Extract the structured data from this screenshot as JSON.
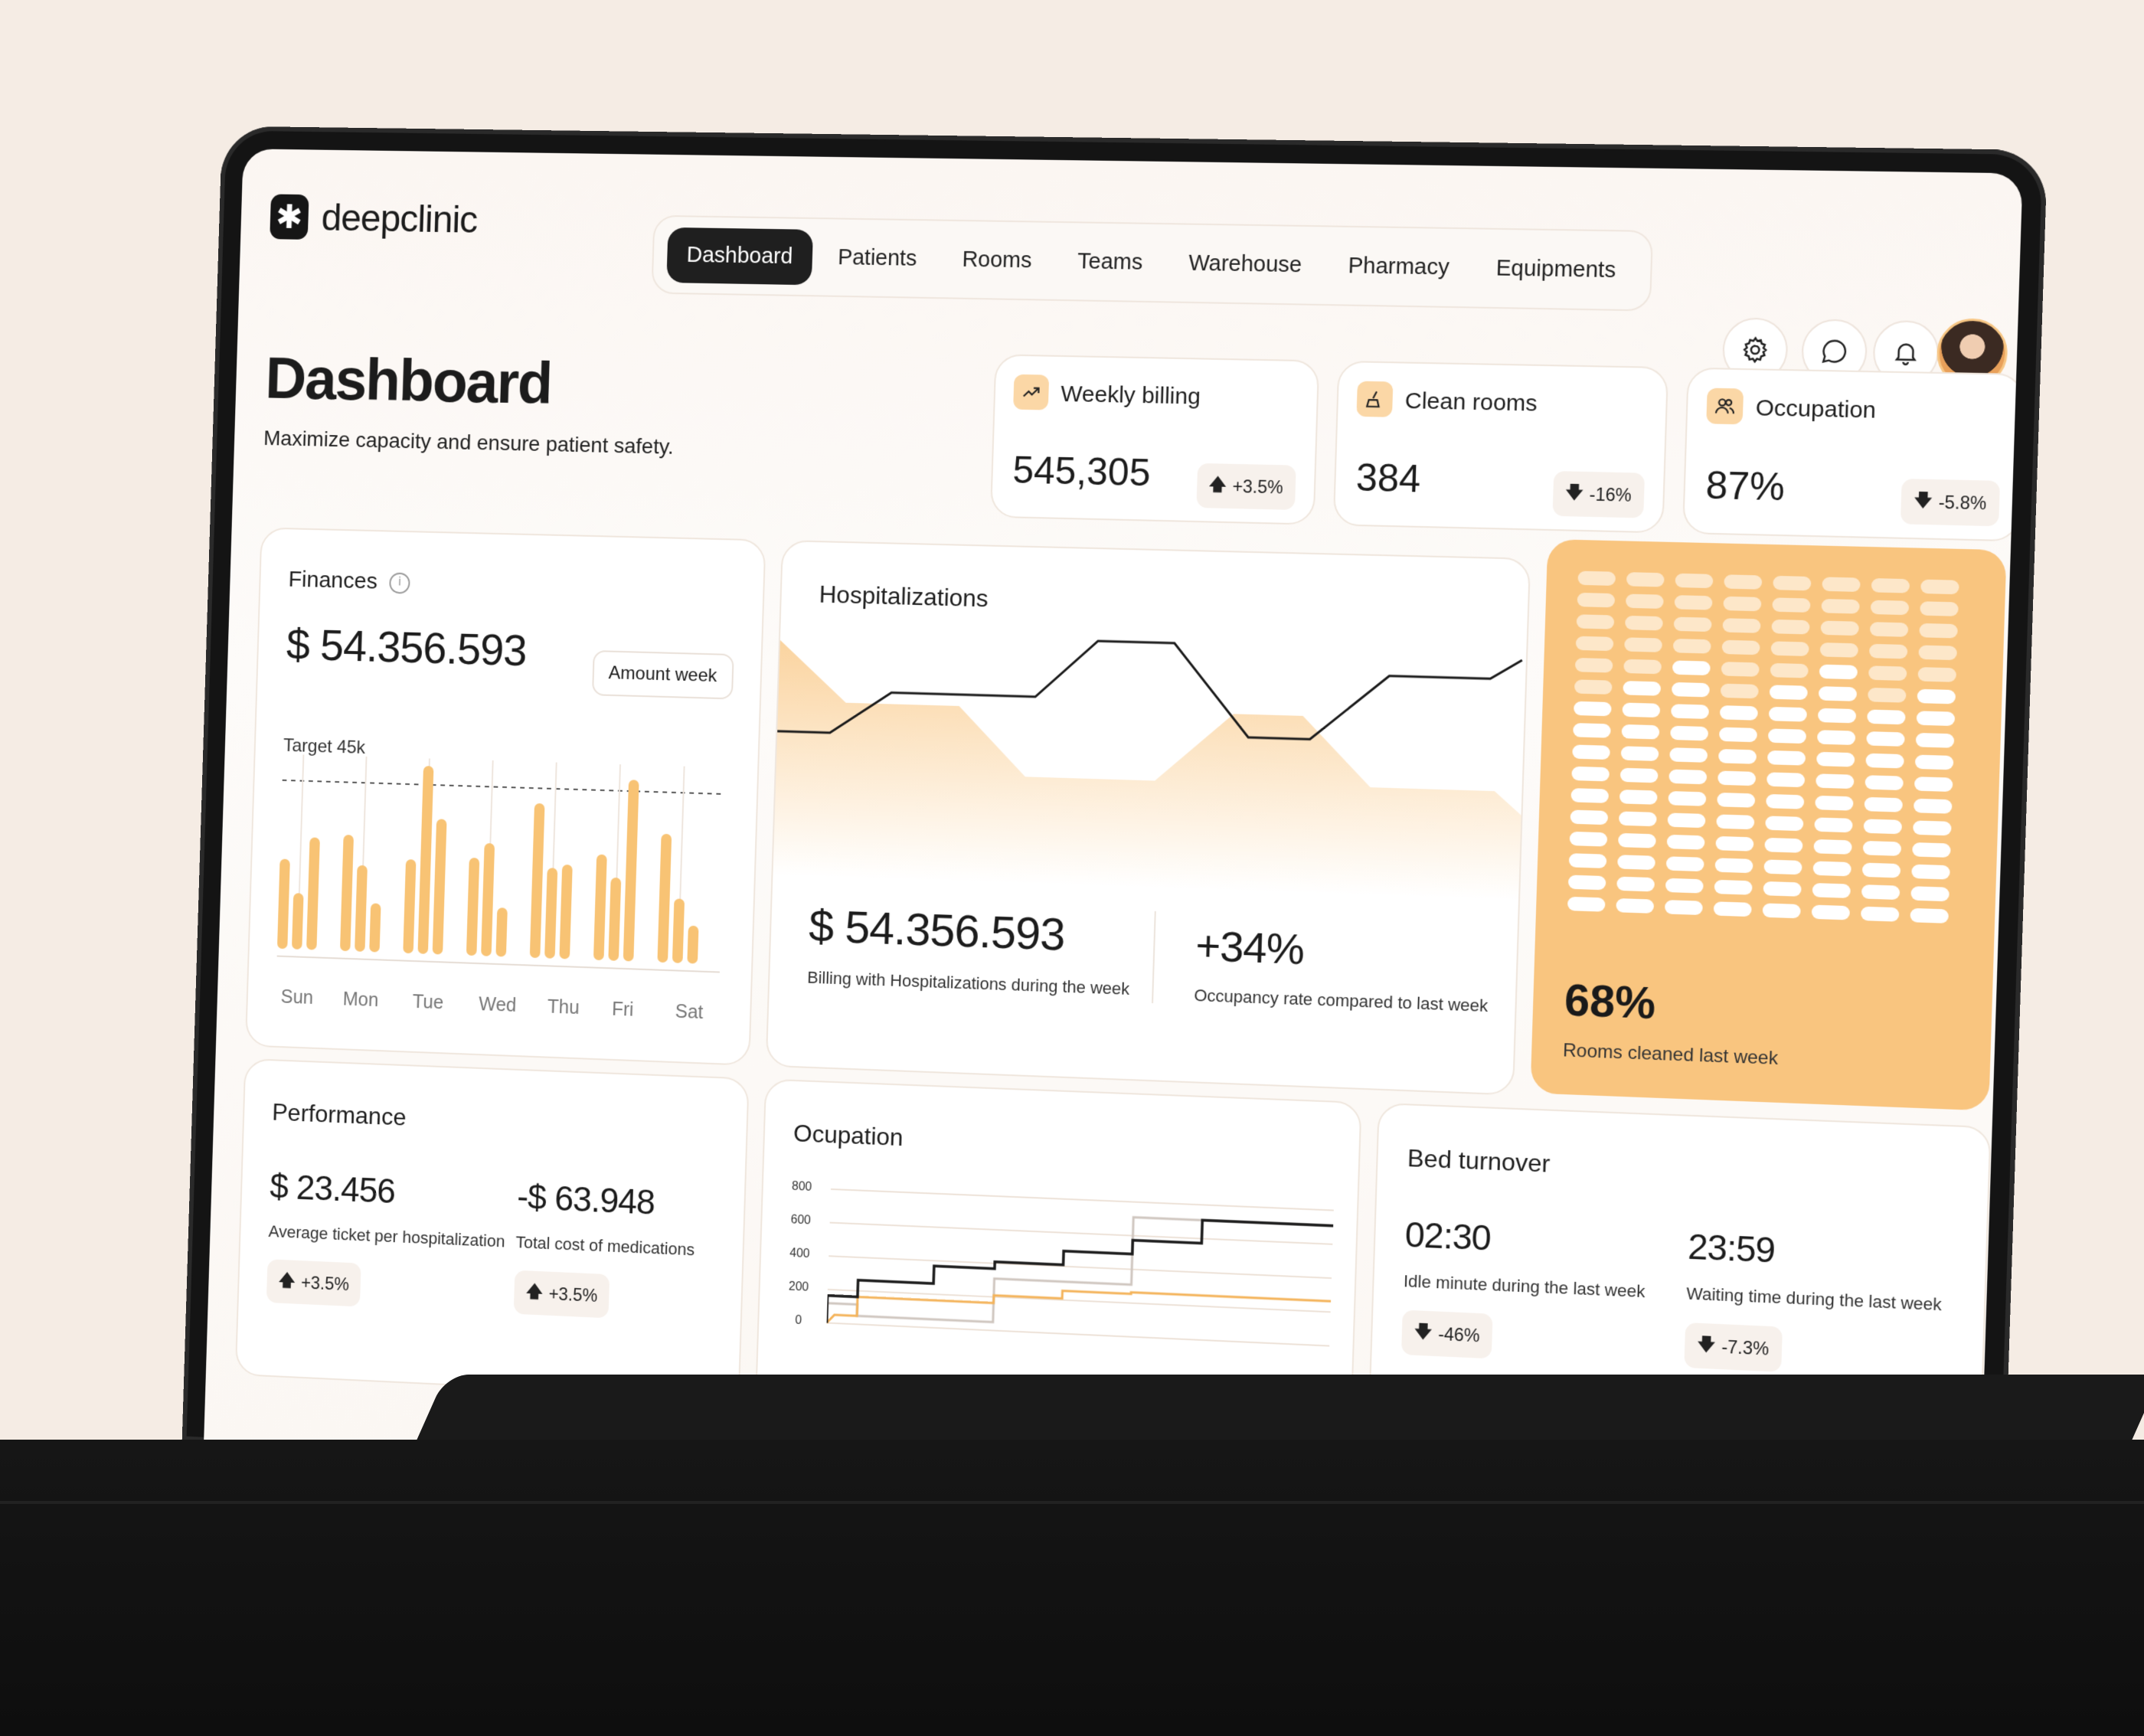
{
  "app": {
    "logo_text": "deepclinic"
  },
  "nav": {
    "items": [
      "Dashboard",
      "Patients",
      "Rooms",
      "Teams",
      "Warehouse",
      "Pharmacy",
      "Equipments"
    ],
    "active": "Dashboard"
  },
  "header_icons": [
    "gear-icon",
    "chat-icon",
    "bell-icon"
  ],
  "page": {
    "title": "Dashboard",
    "subtitle": "Maximize capacity and ensure patient safety."
  },
  "stats": [
    {
      "title": "Weekly billing",
      "value": "545,305",
      "delta": "+3.5%",
      "direction": "up",
      "icon": "trend-up-icon"
    },
    {
      "title": "Clean rooms",
      "value": "384",
      "delta": "-16%",
      "direction": "down",
      "icon": "broom-icon"
    },
    {
      "title": "Occupation",
      "value": "87%",
      "delta": "-5.8%",
      "direction": "down",
      "icon": "users-icon"
    }
  ],
  "finances": {
    "title": "Finances",
    "amount": "$ 54.356.593",
    "filter": "Amount week",
    "target_label": "Target 45k",
    "days": [
      "Sun",
      "Mon",
      "Tue",
      "Wed",
      "Thu",
      "Fri",
      "Sat"
    ]
  },
  "hospitalizations": {
    "title": "Hospitalizations",
    "amount": "$ 54.356.593",
    "amount_caption": "Billing with Hospitalizations during the week",
    "rate": "+34%",
    "rate_caption": "Occupancy rate compared to last week"
  },
  "rooms_cleaned": {
    "percent": "68%",
    "caption": "Rooms cleaned last week",
    "fraction": 0.68
  },
  "performance": {
    "title": "Performance",
    "items": [
      {
        "value": "$ 23.456",
        "caption": "Average ticket per hospitalization",
        "delta": "+3.5%"
      },
      {
        "value": "-$ 63.948",
        "caption": "Total cost of medications",
        "delta": "+3.5%"
      }
    ]
  },
  "ocupation": {
    "title": "Ocupation",
    "y_ticks": [
      "800",
      "600",
      "400",
      "200",
      "0"
    ]
  },
  "bed_turnover": {
    "title": "Bed turnover",
    "items": [
      {
        "value": "02:30",
        "caption": "Idle minute during the last week",
        "delta": "-46%"
      },
      {
        "value": "23:59",
        "caption": "Waiting time during the last week",
        "delta": "-7.3%"
      }
    ]
  },
  "colors": {
    "accent": "#f9c57f",
    "bar": "#f8c374",
    "dark": "#1f1f1f"
  }
}
